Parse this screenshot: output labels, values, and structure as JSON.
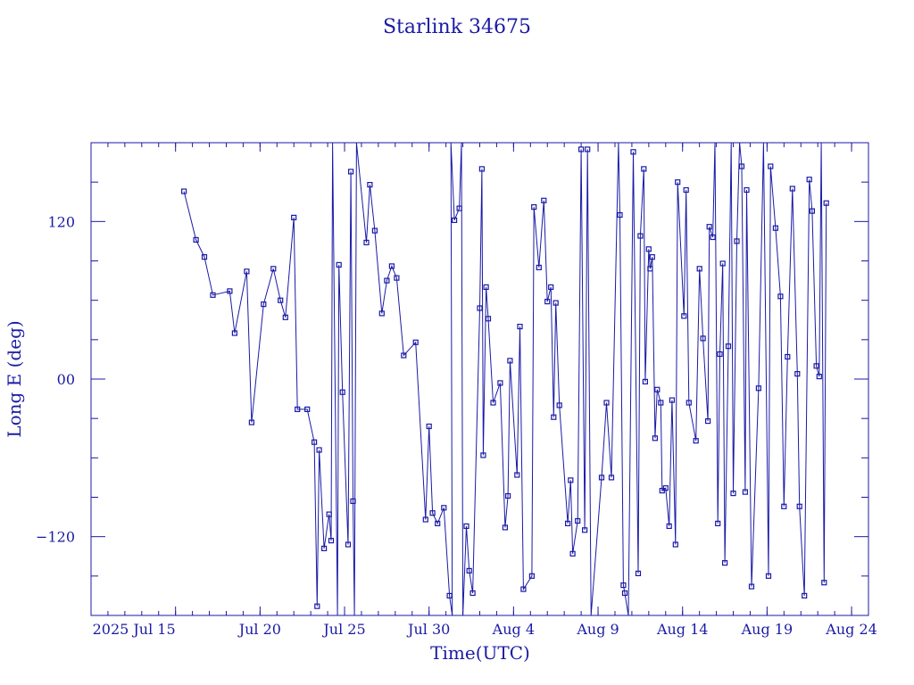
{
  "chart_data": {
    "type": "scatter",
    "title": "Starlink 34675",
    "xlabel": "Time(UTC)",
    "ylabel": "Long E (deg)",
    "x_tick_labels": [
      "2025 Jul 15",
      "Jul 20",
      "Jul 25",
      "Jul 30",
      "Aug 4",
      "Aug 9",
      "Aug 14",
      "Aug 19",
      "Aug 24"
    ],
    "x_tick_dates": [
      "2025-07-15",
      "2025-07-20",
      "2025-07-25",
      "2025-07-30",
      "2025-08-04",
      "2025-08-09",
      "2025-08-14",
      "2025-08-19",
      "2025-08-24"
    ],
    "xlim": [
      "2025-07-10T00:00",
      "2025-08-25T00:00"
    ],
    "ylim": [
      -180,
      180
    ],
    "y_ticks": [
      -120,
      0,
      120
    ],
    "y_tick_labels": [
      "−120",
      "00",
      "120"
    ],
    "grid": false,
    "marker": "open-square",
    "line_color": "#1a1aa6",
    "series": [
      {
        "points": [
          [
            "2025-07-15T12:00",
            143
          ],
          [
            "2025-07-16T05:00",
            106
          ],
          [
            "2025-07-16T17:00",
            93
          ],
          [
            "2025-07-17T05:00",
            64
          ],
          [
            "2025-07-18T05:00",
            67
          ],
          [
            "2025-07-18T12:00",
            35
          ],
          [
            "2025-07-19T05:00",
            82
          ],
          [
            "2025-07-19T12:00",
            -33
          ],
          [
            "2025-07-20T05:00",
            57
          ],
          [
            "2025-07-20T19:00",
            84
          ],
          [
            "2025-07-21T05:00",
            60
          ],
          [
            "2025-07-21T12:00",
            47
          ],
          [
            "2025-07-22T00:00",
            123
          ],
          [
            "2025-07-22T05:00",
            -23
          ],
          [
            "2025-07-22T19:00",
            -23
          ],
          [
            "2025-07-23T05:00",
            -48
          ],
          [
            "2025-07-23T09:00",
            -173
          ],
          [
            "2025-07-23T12:00",
            -54
          ],
          [
            "2025-07-23T19:00",
            -129
          ],
          [
            "2025-07-24T02:00",
            -103
          ],
          [
            "2025-07-24T05:00",
            -123
          ],
          [
            "2025-07-24T07:00",
            180
          ],
          [
            "2025-07-24T14:00",
            -180
          ],
          [
            "2025-07-24T16:00",
            87
          ],
          [
            "2025-07-24T21:00",
            -10
          ],
          [
            "2025-07-25T05:00",
            -126
          ],
          [
            "2025-07-25T09:00",
            158
          ],
          [
            "2025-07-25T12:00",
            -93
          ],
          [
            "2025-07-25T14:00",
            -180
          ],
          [
            "2025-07-25T17:00",
            180
          ],
          [
            "2025-07-26T07:00",
            104
          ],
          [
            "2025-07-26T12:00",
            148
          ],
          [
            "2025-07-26T19:00",
            113
          ],
          [
            "2025-07-27T05:00",
            50
          ],
          [
            "2025-07-27T12:00",
            75
          ],
          [
            "2025-07-27T19:00",
            86
          ],
          [
            "2025-07-28T02:00",
            77
          ],
          [
            "2025-07-28T12:00",
            18
          ],
          [
            "2025-07-29T05:00",
            28
          ],
          [
            "2025-07-29T19:00",
            -107
          ],
          [
            "2025-07-30T00:00",
            -36
          ],
          [
            "2025-07-30T05:00",
            -102
          ],
          [
            "2025-07-30T12:00",
            -110
          ],
          [
            "2025-07-30T21:00",
            -98
          ],
          [
            "2025-07-31T05:00",
            -165
          ],
          [
            "2025-07-31T09:00",
            -180
          ],
          [
            "2025-07-31T07:00",
            180
          ],
          [
            "2025-07-31T12:00",
            121
          ],
          [
            "2025-07-31T19:00",
            130
          ],
          [
            "2025-07-31T22:00",
            180
          ],
          [
            "2025-08-01T00:00",
            -180
          ],
          [
            "2025-08-01T05:00",
            -112
          ],
          [
            "2025-08-01T09:00",
            -146
          ],
          [
            "2025-08-01T14:00",
            -163
          ],
          [
            "2025-08-02T00:00",
            54
          ],
          [
            "2025-08-02T03:00",
            160
          ],
          [
            "2025-08-02T05:00",
            -58
          ],
          [
            "2025-08-02T09:00",
            70
          ],
          [
            "2025-08-02T12:00",
            46
          ],
          [
            "2025-08-02T19:00",
            -18
          ],
          [
            "2025-08-03T05:00",
            -3
          ],
          [
            "2025-08-03T12:00",
            -113
          ],
          [
            "2025-08-03T16:00",
            -89
          ],
          [
            "2025-08-03T19:00",
            14
          ],
          [
            "2025-08-04T05:00",
            -73
          ],
          [
            "2025-08-04T09:00",
            40
          ],
          [
            "2025-08-04T14:00",
            -160
          ],
          [
            "2025-08-05T02:00",
            -150
          ],
          [
            "2025-08-05T05:00",
            131
          ],
          [
            "2025-08-05T12:00",
            85
          ],
          [
            "2025-08-05T19:00",
            136
          ],
          [
            "2025-08-06T00:00",
            59
          ],
          [
            "2025-08-06T05:00",
            70
          ],
          [
            "2025-08-06T09:00",
            -29
          ],
          [
            "2025-08-06T12:00",
            58
          ],
          [
            "2025-08-06T17:00",
            -20
          ],
          [
            "2025-08-07T05:00",
            -110
          ],
          [
            "2025-08-07T09:00",
            -77
          ],
          [
            "2025-08-07T12:00",
            -133
          ],
          [
            "2025-08-07T19:00",
            -108
          ],
          [
            "2025-08-08T00:00",
            175
          ],
          [
            "2025-08-08T05:00",
            -115
          ],
          [
            "2025-08-08T09:00",
            175
          ],
          [
            "2025-08-08T14:00",
            -180
          ],
          [
            "2025-08-09T05:00",
            -75
          ],
          [
            "2025-08-09T12:00",
            -18
          ],
          [
            "2025-08-09T19:00",
            -75
          ],
          [
            "2025-08-10T05:00",
            180
          ],
          [
            "2025-08-10T07:00",
            125
          ],
          [
            "2025-08-10T12:00",
            -157
          ],
          [
            "2025-08-10T14:00",
            -163
          ],
          [
            "2025-08-10T19:00",
            -180
          ],
          [
            "2025-08-11T02:00",
            173
          ],
          [
            "2025-08-11T09:00",
            -148
          ],
          [
            "2025-08-11T12:00",
            109
          ],
          [
            "2025-08-11T17:00",
            160
          ],
          [
            "2025-08-11T19:00",
            -2
          ],
          [
            "2025-08-12T00:00",
            99
          ],
          [
            "2025-08-12T02:00",
            84
          ],
          [
            "2025-08-12T05:00",
            93
          ],
          [
            "2025-08-12T09:00",
            -45
          ],
          [
            "2025-08-12T12:00",
            -8
          ],
          [
            "2025-08-12T17:00",
            -18
          ],
          [
            "2025-08-12T19:00",
            -85
          ],
          [
            "2025-08-13T00:00",
            -83
          ],
          [
            "2025-08-13T05:00",
            -112
          ],
          [
            "2025-08-13T09:00",
            -16
          ],
          [
            "2025-08-13T14:00",
            -126
          ],
          [
            "2025-08-13T17:00",
            150
          ],
          [
            "2025-08-14T02:00",
            48
          ],
          [
            "2025-08-14T05:00",
            144
          ],
          [
            "2025-08-14T09:00",
            -18
          ],
          [
            "2025-08-14T19:00",
            -47
          ],
          [
            "2025-08-15T00:00",
            84
          ],
          [
            "2025-08-15T05:00",
            31
          ],
          [
            "2025-08-15T12:00",
            -32
          ],
          [
            "2025-08-15T14:00",
            116
          ],
          [
            "2025-08-15T19:00",
            108
          ],
          [
            "2025-08-15T22:00",
            180
          ],
          [
            "2025-08-16T02:00",
            -110
          ],
          [
            "2025-08-16T05:00",
            19
          ],
          [
            "2025-08-16T09:00",
            88
          ],
          [
            "2025-08-16T12:00",
            -140
          ],
          [
            "2025-08-16T17:00",
            25
          ],
          [
            "2025-08-16T21:00",
            180
          ],
          [
            "2025-08-17T00:00",
            -87
          ],
          [
            "2025-08-17T05:00",
            105
          ],
          [
            "2025-08-17T09:00",
            180
          ],
          [
            "2025-08-17T12:00",
            162
          ],
          [
            "2025-08-17T17:00",
            -86
          ],
          [
            "2025-08-17T19:00",
            144
          ],
          [
            "2025-08-18T02:00",
            -158
          ],
          [
            "2025-08-18T12:00",
            -7
          ],
          [
            "2025-08-18T19:00",
            180
          ],
          [
            "2025-08-19T02:00",
            -150
          ],
          [
            "2025-08-19T05:00",
            162
          ],
          [
            "2025-08-19T12:00",
            115
          ],
          [
            "2025-08-19T19:00",
            63
          ],
          [
            "2025-08-20T00:00",
            -97
          ],
          [
            "2025-08-20T05:00",
            17
          ],
          [
            "2025-08-20T12:00",
            145
          ],
          [
            "2025-08-20T19:00",
            4
          ],
          [
            "2025-08-20T22:00",
            -97
          ],
          [
            "2025-08-21T05:00",
            -165
          ],
          [
            "2025-08-21T12:00",
            152
          ],
          [
            "2025-08-21T16:00",
            128
          ],
          [
            "2025-08-21T22:00",
            10
          ],
          [
            "2025-08-22T02:00",
            2
          ],
          [
            "2025-08-22T05:00",
            180
          ],
          [
            "2025-08-22T09:00",
            -155
          ],
          [
            "2025-08-22T12:00",
            134
          ]
        ]
      }
    ]
  }
}
